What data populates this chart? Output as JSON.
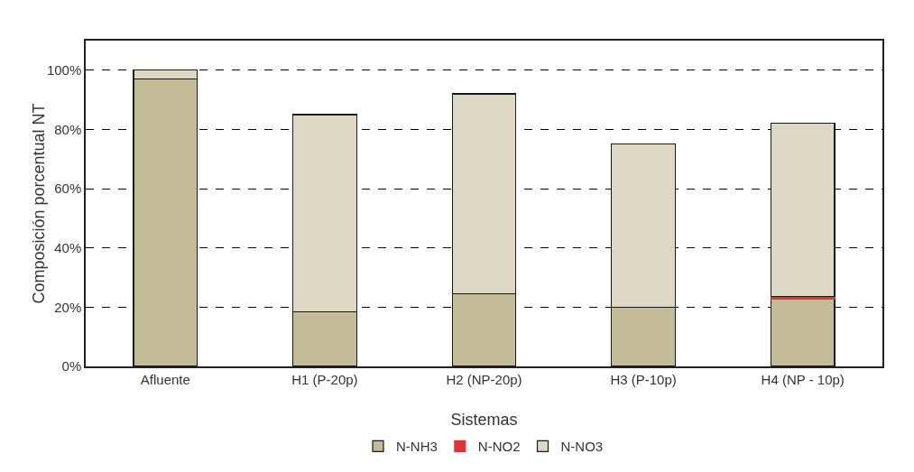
{
  "chart_data": {
    "type": "bar",
    "stacked": true,
    "xlabel": "Sistemas",
    "ylabel": "Composición porcentual NT",
    "categories": [
      "Afluente",
      "H1 (P-20p)",
      "H2 (NP-20p)",
      "H3 (P-10p)",
      "H4 (NP - 10p)"
    ],
    "series": [
      {
        "name": "N-NH3",
        "color": "#c4bb98",
        "values": [
          97,
          18.5,
          24.5,
          20,
          22.8
        ]
      },
      {
        "name": "N-NO2",
        "color": "#d9383a",
        "values": [
          0,
          0,
          0,
          0,
          0.7
        ]
      },
      {
        "name": "N-NO3",
        "color": "#ddd8c4",
        "values": [
          3,
          66.5,
          67.5,
          55,
          58.5
        ]
      }
    ],
    "ylim": [
      0,
      110
    ],
    "yticks": [
      {
        "value": 0,
        "label": "0%"
      },
      {
        "value": 20,
        "label": "20%"
      },
      {
        "value": 40,
        "label": "40%"
      },
      {
        "value": 60,
        "label": "60%"
      },
      {
        "value": 80,
        "label": "80%"
      },
      {
        "value": 100,
        "label": "100%"
      }
    ],
    "grid": "y",
    "line_style": "dashed",
    "legend": "bottom"
  }
}
